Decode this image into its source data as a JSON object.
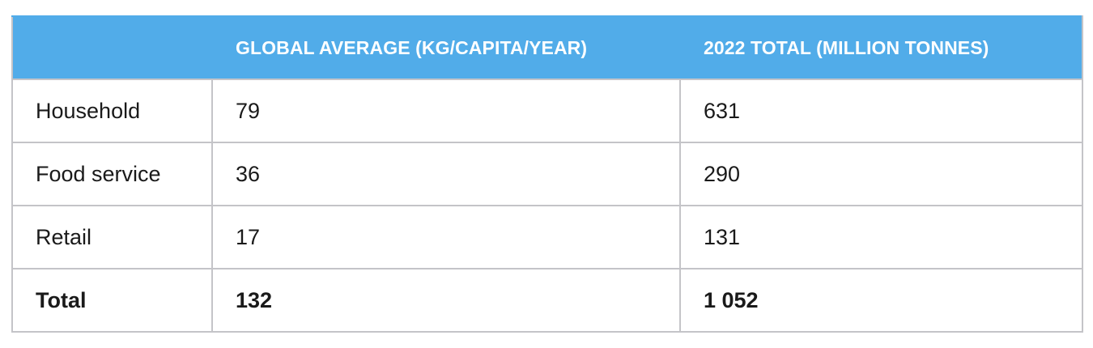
{
  "table": {
    "headers": [
      "",
      "GLOBAL AVERAGE (KG/CAPITA/YEAR)",
      "2022 TOTAL (MILLION TONNES)"
    ],
    "rows": [
      [
        "Household",
        "79",
        "631"
      ],
      [
        "Food service",
        "36",
        "290"
      ],
      [
        "Retail",
        "17",
        "131"
      ]
    ],
    "total": [
      "Total",
      "132",
      "1 052"
    ]
  },
  "colors": {
    "header_background": "#51ace9",
    "header_text": "#ffffff",
    "grid_lines": "#c4c4c8",
    "body_text": "#1a1a1a"
  }
}
